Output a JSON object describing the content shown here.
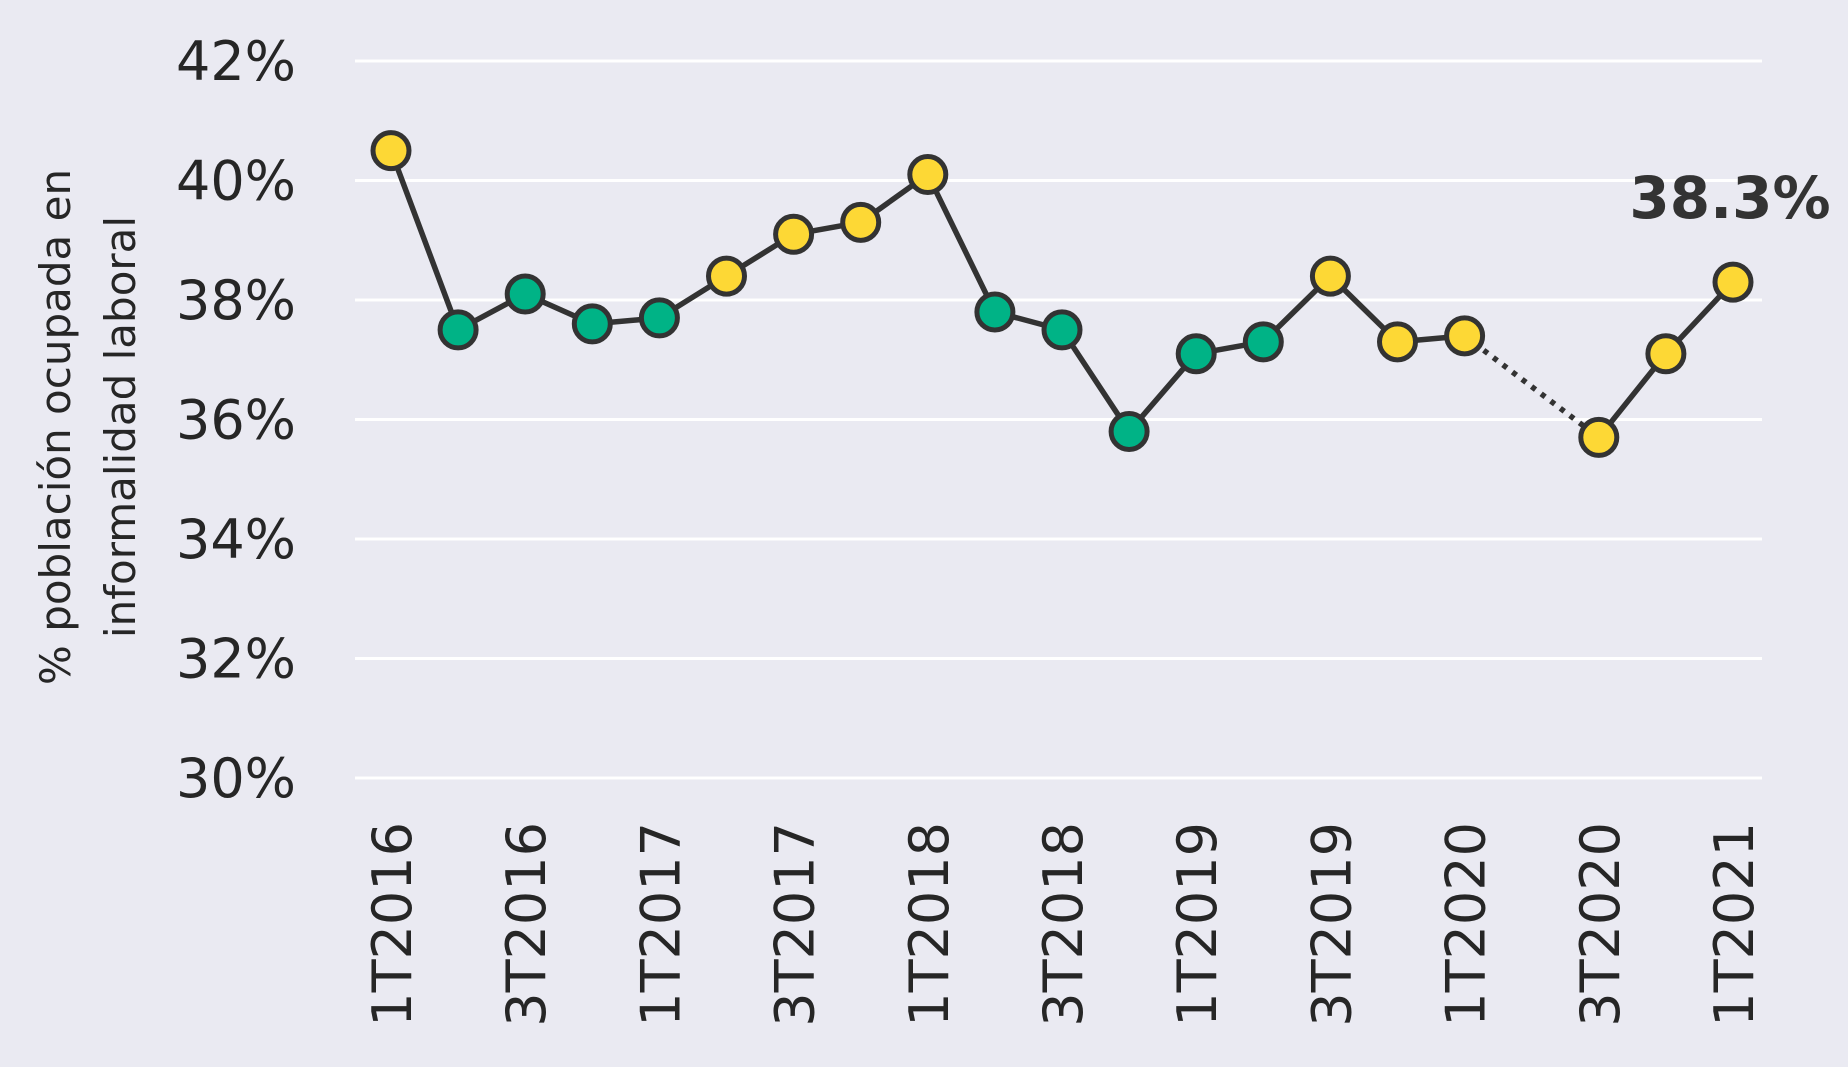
{
  "chart_data": {
    "type": "line",
    "title": "",
    "xlabel": "",
    "ylabel_lines": [
      "% población ocupada en",
      "informalidad laboral"
    ],
    "ylim": [
      30,
      42
    ],
    "ytick_values": [
      30,
      32,
      34,
      36,
      38,
      40,
      42
    ],
    "ytick_labels": [
      "30%",
      "32%",
      "34%",
      "36%",
      "38%",
      "40%",
      "42%"
    ],
    "grid": true,
    "x_labels": [
      "1T2016",
      "2T2016",
      "3T2016",
      "4T2016",
      "1T2017",
      "2T2017",
      "3T2017",
      "4T2017",
      "1T2018",
      "2T2018",
      "3T2018",
      "4T2018",
      "1T2019",
      "2T2019",
      "3T2019",
      "4T2019",
      "1T2020",
      "2T2020",
      "3T2020",
      "4T2020",
      "1T2021"
    ],
    "xtick_labels_shown": [
      "1T2016",
      "3T2016",
      "1T2017",
      "3T2017",
      "1T2018",
      "3T2018",
      "1T2019",
      "3T2019",
      "1T2020",
      "3T2020",
      "1T2021"
    ],
    "values": [
      40.5,
      37.5,
      38.1,
      37.6,
      37.7,
      38.4,
      39.1,
      39.3,
      40.1,
      37.8,
      37.5,
      35.8,
      37.1,
      37.3,
      38.4,
      37.3,
      37.4,
      null,
      35.7,
      37.1,
      38.3
    ],
    "point_colors": [
      "yellow",
      "green",
      "green",
      "green",
      "green",
      "yellow",
      "yellow",
      "yellow",
      "yellow",
      "green",
      "green",
      "green",
      "green",
      "green",
      "yellow",
      "yellow",
      "yellow",
      null,
      "yellow",
      "yellow",
      "yellow"
    ],
    "missing_bridge": {
      "from": "1T2020",
      "to": "3T2020",
      "style": "dotted"
    },
    "annotation": {
      "text": "38.3%",
      "at": "1T2021"
    },
    "colors": {
      "background": "#eaeaf2",
      "grid": "#ffffff",
      "line": "#333333",
      "yellow": "#fdd835",
      "green": "#00b386",
      "text": "#262626"
    }
  }
}
